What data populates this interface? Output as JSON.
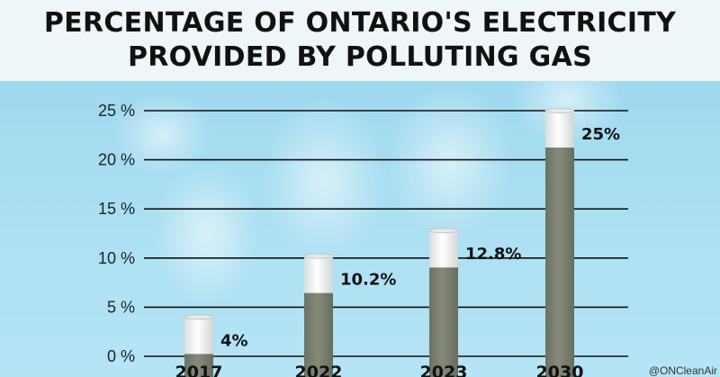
{
  "header": {
    "title_line1": "PERCENTAGE OF ONTARIO'S ELECTRICITY",
    "title_line2": "PROVIDED BY POLLUTING GAS"
  },
  "chart_data": {
    "type": "bar",
    "title": "PERCENTAGE OF ONTARIO'S ELECTRICITY PROVIDED BY POLLUTING GAS",
    "categories": [
      "2017",
      "2022",
      "2023",
      "2030"
    ],
    "values": [
      4,
      10.2,
      12.8,
      25
    ],
    "data_labels": [
      "4%",
      "10.2%",
      "12.8%",
      "25%"
    ],
    "ylim": [
      0,
      25
    ],
    "yticks": [
      0,
      5,
      10,
      15,
      20,
      25
    ],
    "ytick_labels": [
      "0 %",
      "5 %",
      "10 %",
      "15 %",
      "20 %",
      "25 %"
    ],
    "xlabel": "",
    "ylabel": "",
    "grid": true,
    "style": "smokestacks"
  },
  "watermark": "@ONCleanAir",
  "colors": {
    "stack_body": "#7d8372",
    "stack_cap": "#f2f4f4",
    "gridline": "#111111",
    "text": "#111111"
  }
}
